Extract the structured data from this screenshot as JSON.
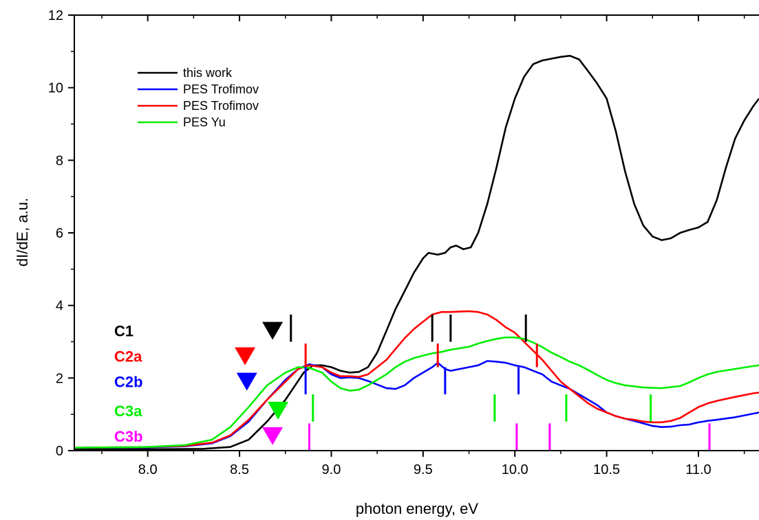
{
  "chart_data": {
    "type": "line",
    "title": "",
    "xlabel": "photon energy, eV",
    "ylabel": "dI/dE, a.u.",
    "xlim": [
      7.6,
      11.33
    ],
    "ylim": [
      0,
      12
    ],
    "xticks": [
      8.0,
      8.5,
      9.0,
      9.5,
      10.0,
      10.5,
      11.0
    ],
    "xtick_labels": [
      "8.0",
      "8.5",
      "9.0",
      "9.5",
      "10.0",
      "10.5",
      "11.0"
    ],
    "yticks": [
      0,
      2,
      4,
      6,
      8,
      10,
      12
    ],
    "ytick_labels": [
      "0",
      "2",
      "4",
      "6",
      "8",
      "10",
      "12"
    ],
    "grid": false,
    "legend_position": "top-left",
    "series": [
      {
        "name": "this work",
        "color": "#000000",
        "points": [
          [
            7.6,
            0.04
          ],
          [
            8.0,
            0.04
          ],
          [
            8.3,
            0.05
          ],
          [
            8.45,
            0.1
          ],
          [
            8.55,
            0.3
          ],
          [
            8.65,
            0.8
          ],
          [
            8.75,
            1.4
          ],
          [
            8.85,
            2.15
          ],
          [
            8.9,
            2.35
          ],
          [
            8.95,
            2.35
          ],
          [
            9.0,
            2.3
          ],
          [
            9.05,
            2.2
          ],
          [
            9.1,
            2.15
          ],
          [
            9.15,
            2.17
          ],
          [
            9.2,
            2.3
          ],
          [
            9.25,
            2.7
          ],
          [
            9.3,
            3.3
          ],
          [
            9.35,
            3.9
          ],
          [
            9.4,
            4.4
          ],
          [
            9.45,
            4.9
          ],
          [
            9.5,
            5.3
          ],
          [
            9.53,
            5.45
          ],
          [
            9.58,
            5.4
          ],
          [
            9.62,
            5.45
          ],
          [
            9.65,
            5.6
          ],
          [
            9.68,
            5.65
          ],
          [
            9.72,
            5.55
          ],
          [
            9.76,
            5.6
          ],
          [
            9.8,
            6.0
          ],
          [
            9.85,
            6.8
          ],
          [
            9.9,
            7.8
          ],
          [
            9.95,
            8.9
          ],
          [
            10.0,
            9.7
          ],
          [
            10.05,
            10.3
          ],
          [
            10.1,
            10.65
          ],
          [
            10.15,
            10.75
          ],
          [
            10.2,
            10.8
          ],
          [
            10.25,
            10.85
          ],
          [
            10.3,
            10.88
          ],
          [
            10.35,
            10.78
          ],
          [
            10.4,
            10.45
          ],
          [
            10.45,
            10.1
          ],
          [
            10.5,
            9.7
          ],
          [
            10.55,
            8.8
          ],
          [
            10.6,
            7.7
          ],
          [
            10.65,
            6.8
          ],
          [
            10.7,
            6.2
          ],
          [
            10.75,
            5.9
          ],
          [
            10.8,
            5.8
          ],
          [
            10.85,
            5.85
          ],
          [
            10.9,
            6.0
          ],
          [
            10.95,
            6.08
          ],
          [
            11.0,
            6.15
          ],
          [
            11.05,
            6.3
          ],
          [
            11.1,
            6.9
          ],
          [
            11.15,
            7.8
          ],
          [
            11.2,
            8.6
          ],
          [
            11.25,
            9.1
          ],
          [
            11.3,
            9.5
          ],
          [
            11.33,
            9.7
          ]
        ]
      },
      {
        "name": "PES Trofimov",
        "color": "#0000ff",
        "points": [
          [
            7.6,
            0.08
          ],
          [
            8.0,
            0.09
          ],
          [
            8.2,
            0.12
          ],
          [
            8.35,
            0.2
          ],
          [
            8.45,
            0.4
          ],
          [
            8.55,
            0.8
          ],
          [
            8.65,
            1.4
          ],
          [
            8.75,
            1.95
          ],
          [
            8.82,
            2.25
          ],
          [
            8.88,
            2.38
          ],
          [
            8.95,
            2.3
          ],
          [
            9.0,
            2.1
          ],
          [
            9.05,
            2.0
          ],
          [
            9.1,
            2.02
          ],
          [
            9.15,
            2.0
          ],
          [
            9.2,
            1.92
          ],
          [
            9.3,
            1.72
          ],
          [
            9.35,
            1.7
          ],
          [
            9.4,
            1.8
          ],
          [
            9.45,
            2.0
          ],
          [
            9.5,
            2.15
          ],
          [
            9.55,
            2.3
          ],
          [
            9.58,
            2.42
          ],
          [
            9.62,
            2.25
          ],
          [
            9.65,
            2.2
          ],
          [
            9.7,
            2.25
          ],
          [
            9.75,
            2.3
          ],
          [
            9.8,
            2.35
          ],
          [
            9.85,
            2.47
          ],
          [
            9.9,
            2.45
          ],
          [
            9.95,
            2.42
          ],
          [
            10.0,
            2.35
          ],
          [
            10.05,
            2.3
          ],
          [
            10.1,
            2.2
          ],
          [
            10.15,
            2.1
          ],
          [
            10.2,
            1.9
          ],
          [
            10.25,
            1.8
          ],
          [
            10.3,
            1.7
          ],
          [
            10.35,
            1.55
          ],
          [
            10.4,
            1.4
          ],
          [
            10.45,
            1.25
          ],
          [
            10.5,
            1.05
          ],
          [
            10.55,
            0.95
          ],
          [
            10.6,
            0.88
          ],
          [
            10.65,
            0.82
          ],
          [
            10.7,
            0.75
          ],
          [
            10.75,
            0.68
          ],
          [
            10.8,
            0.65
          ],
          [
            10.85,
            0.66
          ],
          [
            10.9,
            0.7
          ],
          [
            10.95,
            0.72
          ],
          [
            11.0,
            0.78
          ],
          [
            11.05,
            0.82
          ],
          [
            11.1,
            0.85
          ],
          [
            11.2,
            0.92
          ],
          [
            11.3,
            1.02
          ],
          [
            11.33,
            1.05
          ]
        ]
      },
      {
        "name": "PES Trofimov",
        "color": "#ff0000",
        "points": [
          [
            7.6,
            0.08
          ],
          [
            8.0,
            0.1
          ],
          [
            8.2,
            0.13
          ],
          [
            8.35,
            0.22
          ],
          [
            8.45,
            0.42
          ],
          [
            8.55,
            0.85
          ],
          [
            8.65,
            1.4
          ],
          [
            8.75,
            1.9
          ],
          [
            8.82,
            2.25
          ],
          [
            8.88,
            2.35
          ],
          [
            8.95,
            2.3
          ],
          [
            9.0,
            2.15
          ],
          [
            9.05,
            2.05
          ],
          [
            9.1,
            2.05
          ],
          [
            9.15,
            2.03
          ],
          [
            9.2,
            2.1
          ],
          [
            9.25,
            2.3
          ],
          [
            9.3,
            2.5
          ],
          [
            9.35,
            2.8
          ],
          [
            9.4,
            3.1
          ],
          [
            9.45,
            3.35
          ],
          [
            9.5,
            3.55
          ],
          [
            9.55,
            3.75
          ],
          [
            9.6,
            3.82
          ],
          [
            9.65,
            3.82
          ],
          [
            9.7,
            3.83
          ],
          [
            9.75,
            3.84
          ],
          [
            9.8,
            3.82
          ],
          [
            9.85,
            3.75
          ],
          [
            9.9,
            3.6
          ],
          [
            9.95,
            3.4
          ],
          [
            10.0,
            3.25
          ],
          [
            10.05,
            3.0
          ],
          [
            10.1,
            2.75
          ],
          [
            10.15,
            2.5
          ],
          [
            10.2,
            2.2
          ],
          [
            10.25,
            1.9
          ],
          [
            10.3,
            1.7
          ],
          [
            10.35,
            1.5
          ],
          [
            10.4,
            1.3
          ],
          [
            10.45,
            1.15
          ],
          [
            10.5,
            1.05
          ],
          [
            10.55,
            0.95
          ],
          [
            10.6,
            0.88
          ],
          [
            10.65,
            0.85
          ],
          [
            10.7,
            0.8
          ],
          [
            10.75,
            0.78
          ],
          [
            10.8,
            0.78
          ],
          [
            10.85,
            0.82
          ],
          [
            10.9,
            0.9
          ],
          [
            10.95,
            1.05
          ],
          [
            11.0,
            1.2
          ],
          [
            11.05,
            1.3
          ],
          [
            11.1,
            1.37
          ],
          [
            11.2,
            1.48
          ],
          [
            11.3,
            1.58
          ],
          [
            11.33,
            1.6
          ]
        ]
      },
      {
        "name": "PES Yu",
        "color": "#00ee00",
        "points": [
          [
            7.6,
            0.08
          ],
          [
            8.0,
            0.1
          ],
          [
            8.2,
            0.15
          ],
          [
            8.35,
            0.3
          ],
          [
            8.45,
            0.65
          ],
          [
            8.55,
            1.2
          ],
          [
            8.65,
            1.8
          ],
          [
            8.75,
            2.15
          ],
          [
            8.82,
            2.3
          ],
          [
            8.88,
            2.28
          ],
          [
            8.95,
            2.15
          ],
          [
            9.0,
            1.9
          ],
          [
            9.05,
            1.72
          ],
          [
            9.1,
            1.65
          ],
          [
            9.15,
            1.68
          ],
          [
            9.2,
            1.8
          ],
          [
            9.25,
            1.95
          ],
          [
            9.3,
            2.1
          ],
          [
            9.35,
            2.3
          ],
          [
            9.4,
            2.45
          ],
          [
            9.45,
            2.55
          ],
          [
            9.5,
            2.62
          ],
          [
            9.55,
            2.68
          ],
          [
            9.6,
            2.72
          ],
          [
            9.65,
            2.78
          ],
          [
            9.7,
            2.82
          ],
          [
            9.75,
            2.86
          ],
          [
            9.8,
            2.95
          ],
          [
            9.85,
            3.02
          ],
          [
            9.9,
            3.08
          ],
          [
            9.95,
            3.12
          ],
          [
            10.0,
            3.12
          ],
          [
            10.05,
            3.08
          ],
          [
            10.1,
            2.98
          ],
          [
            10.15,
            2.85
          ],
          [
            10.2,
            2.7
          ],
          [
            10.25,
            2.58
          ],
          [
            10.3,
            2.45
          ],
          [
            10.35,
            2.35
          ],
          [
            10.4,
            2.22
          ],
          [
            10.45,
            2.08
          ],
          [
            10.5,
            1.95
          ],
          [
            10.55,
            1.86
          ],
          [
            10.6,
            1.8
          ],
          [
            10.7,
            1.74
          ],
          [
            10.8,
            1.72
          ],
          [
            10.9,
            1.78
          ],
          [
            10.95,
            1.88
          ],
          [
            11.0,
            2.0
          ],
          [
            11.05,
            2.1
          ],
          [
            11.1,
            2.17
          ],
          [
            11.2,
            2.25
          ],
          [
            11.3,
            2.33
          ],
          [
            11.33,
            2.35
          ]
        ]
      }
    ],
    "annotations": [
      {
        "label": "C1",
        "color": "#000000",
        "label_y": 3.3,
        "triangle_x": 8.68,
        "triangle_y": 3.3,
        "markers": [
          {
            "x": 8.78,
            "y0": 3.0,
            "y1": 3.75
          },
          {
            "x": 9.55,
            "y0": 3.0,
            "y1": 3.75
          },
          {
            "x": 9.65,
            "y0": 3.0,
            "y1": 3.75
          },
          {
            "x": 10.06,
            "y0": 3.0,
            "y1": 3.75
          }
        ]
      },
      {
        "label": "C2a",
        "color": "#ff0000",
        "label_y": 2.6,
        "triangle_x": 8.53,
        "triangle_y": 2.6,
        "markers": [
          {
            "x": 8.86,
            "y0": 2.3,
            "y1": 2.95
          },
          {
            "x": 9.58,
            "y0": 2.3,
            "y1": 2.95
          },
          {
            "x": 10.12,
            "y0": 2.3,
            "y1": 2.95
          }
        ]
      },
      {
        "label": "C2b",
        "color": "#0000ff",
        "label_y": 1.9,
        "triangle_x": 8.54,
        "triangle_y": 1.9,
        "markers": [
          {
            "x": 8.86,
            "y0": 1.55,
            "y1": 2.3
          },
          {
            "x": 9.62,
            "y0": 1.55,
            "y1": 2.3
          },
          {
            "x": 10.02,
            "y0": 1.55,
            "y1": 2.3
          }
        ]
      },
      {
        "label": "C3a",
        "color": "#00ee00",
        "label_y": 1.1,
        "triangle_x": 8.71,
        "triangle_y": 1.1,
        "markers": [
          {
            "x": 8.9,
            "y0": 0.8,
            "y1": 1.55
          },
          {
            "x": 9.89,
            "y0": 0.8,
            "y1": 1.55
          },
          {
            "x": 10.28,
            "y0": 0.8,
            "y1": 1.55
          },
          {
            "x": 10.74,
            "y0": 0.8,
            "y1": 1.55
          }
        ]
      },
      {
        "label": "C3b",
        "color": "#ff00ff",
        "label_y": 0.4,
        "triangle_x": 8.68,
        "triangle_y": 0.4,
        "markers": [
          {
            "x": 8.88,
            "y0": 0.0,
            "y1": 0.75
          },
          {
            "x": 10.01,
            "y0": 0.0,
            "y1": 0.75
          },
          {
            "x": 10.19,
            "y0": 0.0,
            "y1": 0.75
          },
          {
            "x": 11.06,
            "y0": 0.0,
            "y1": 0.75
          }
        ]
      }
    ]
  }
}
